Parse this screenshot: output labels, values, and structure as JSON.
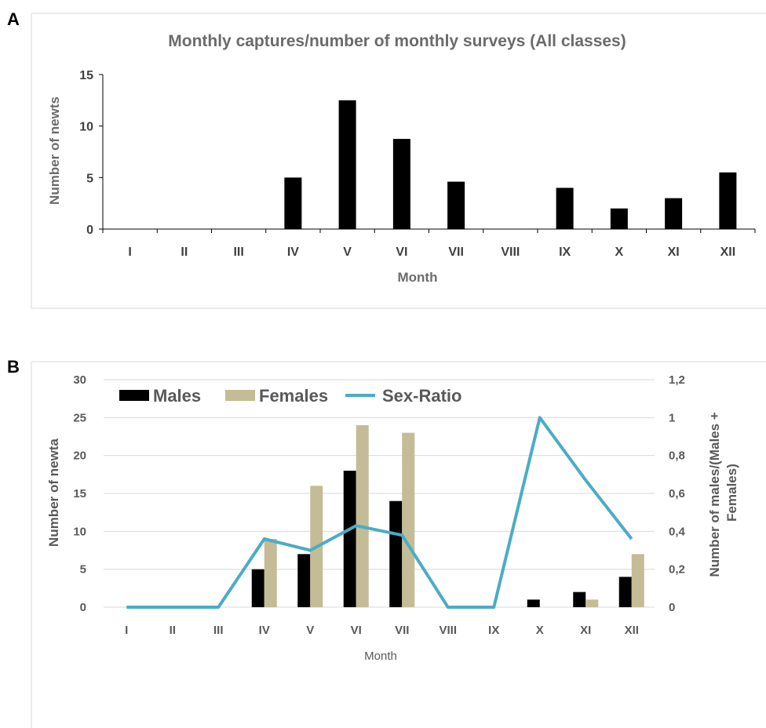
{
  "panels": {
    "a_letter": "A",
    "b_letter": "B"
  },
  "colors": {
    "male": "#000000",
    "female": "#c4bc96",
    "sex_ratio": "#4bacc6",
    "bar_a": "#000000",
    "grid": "#d9d9d9",
    "frame": "#d9d9d9"
  },
  "chart_data": [
    {
      "type": "bar",
      "title": "Monthly captures/number of monthly surveys (All classes)",
      "xlabel": "Month",
      "ylabel": "Number of newts",
      "categories": [
        "I",
        "II",
        "III",
        "IV",
        "V",
        "VI",
        "VII",
        "VIII",
        "IX",
        "X",
        "XI",
        "XII"
      ],
      "values": [
        0,
        0,
        0,
        5,
        12.5,
        8.75,
        4.6,
        0,
        4,
        2,
        3,
        5.5
      ],
      "ylim": [
        0,
        15
      ],
      "yticks": [
        0,
        5,
        10,
        15
      ],
      "grid": false
    },
    {
      "type": "bar",
      "title": "",
      "xlabel": "Month",
      "ylabel": "Number of newta",
      "y2label": "Number of males/(Males + Females)",
      "categories": [
        "I",
        "II",
        "III",
        "IV",
        "V",
        "VI",
        "VII",
        "VIII",
        "IX",
        "X",
        "XI",
        "XII"
      ],
      "series": [
        {
          "name": "Males",
          "kind": "bar",
          "axis": "left",
          "values": [
            0,
            0,
            0,
            5,
            7,
            18,
            14,
            0,
            0,
            1,
            2,
            4
          ]
        },
        {
          "name": "Females",
          "kind": "bar",
          "axis": "left",
          "values": [
            0,
            0,
            0,
            9,
            16,
            24,
            23,
            0,
            0,
            0,
            1,
            7
          ]
        },
        {
          "name": "Sex-Ratio",
          "kind": "line",
          "axis": "right",
          "values": [
            0,
            0,
            0,
            0.36,
            0.3,
            0.43,
            0.38,
            0,
            0,
            1,
            0.67,
            0.36
          ]
        }
      ],
      "ylim": [
        0,
        30
      ],
      "yticks": [
        "0",
        "5",
        "10",
        "15",
        "20",
        "25",
        "30"
      ],
      "y2lim": [
        0,
        1.2
      ],
      "y2ticks": [
        "0",
        "0,2",
        "0,4",
        "0,6",
        "0,8",
        "1",
        "1,2"
      ],
      "legend": "top-left",
      "grid": true
    }
  ]
}
